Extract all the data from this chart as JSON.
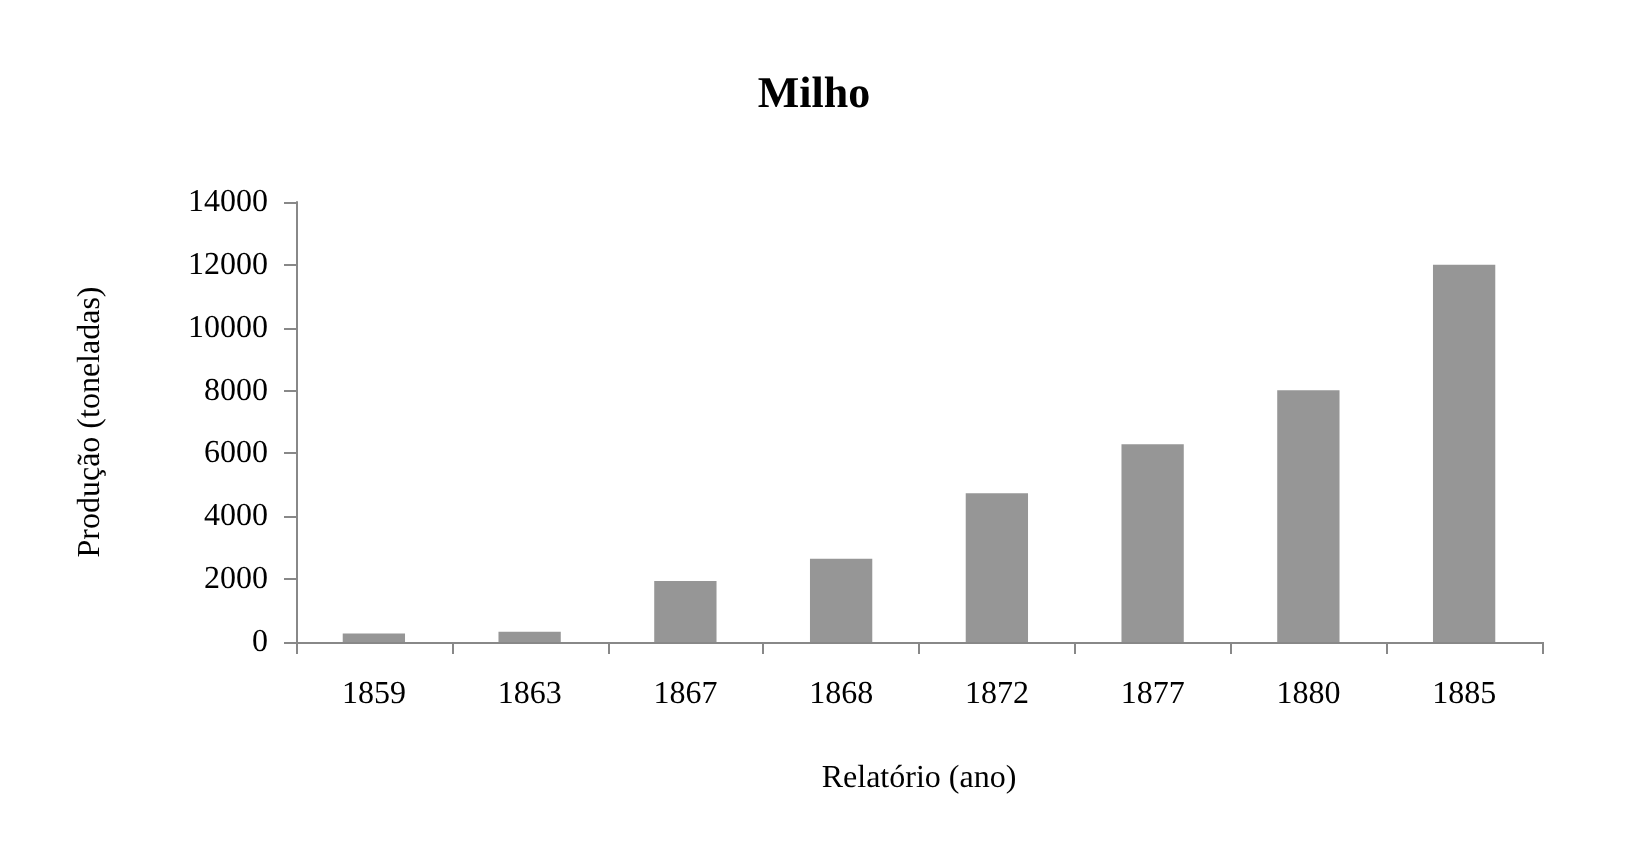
{
  "chart_data": {
    "type": "bar",
    "title": "Milho",
    "xlabel": "Relatório (ano)",
    "ylabel": "Produção (toneladas)",
    "categories": [
      "1859",
      "1863",
      "1867",
      "1868",
      "1872",
      "1877",
      "1880",
      "1885"
    ],
    "values": [
      270,
      330,
      1940,
      2650,
      4730,
      6290,
      8010,
      12000
    ],
    "color": "#969696",
    "ylim": [
      0,
      14000
    ],
    "yticks": [
      0,
      2000,
      4000,
      6000,
      8000,
      10000,
      12000,
      14000
    ],
    "grid": false
  }
}
